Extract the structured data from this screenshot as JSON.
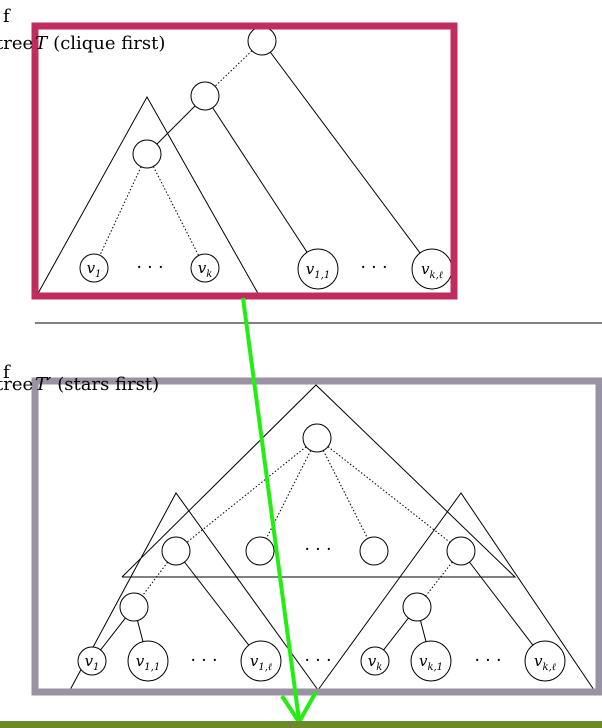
{
  "top_caption": {
    "overlay_glyph": "f",
    "prefix": "tree",
    "tree_symbol": "T",
    "description": "(clique first)"
  },
  "bottom_caption": {
    "overlay_glyph": "f",
    "prefix": "tree",
    "tree_symbol": "T′",
    "description": "(stars first)"
  },
  "top_tree": {
    "leaves": [
      {
        "base": "v",
        "sub": "1"
      },
      {
        "base": "v",
        "sub": "k"
      },
      {
        "base": "v",
        "sub": "1,1"
      },
      {
        "base": "v",
        "sub": "k,ℓ"
      }
    ],
    "ellipses": [
      "· · ·",
      "· · ·"
    ]
  },
  "bottom_tree": {
    "leaves": [
      {
        "base": "v",
        "sub": "1"
      },
      {
        "base": "v",
        "sub": "1,1"
      },
      {
        "base": "v",
        "sub": "1,ℓ"
      },
      {
        "base": "v",
        "sub": "k"
      },
      {
        "base": "v",
        "sub": "k,1"
      },
      {
        "base": "v",
        "sub": "k,ℓ"
      }
    ],
    "ellipses": [
      "· · ·",
      "· · ·",
      "· · ·",
      "· · ·"
    ]
  },
  "colors": {
    "top_box": "#c02c5e",
    "bottom_box": "#9a92a2",
    "arrow": "#22ee11",
    "bottom_band": "#6b8a2a"
  }
}
